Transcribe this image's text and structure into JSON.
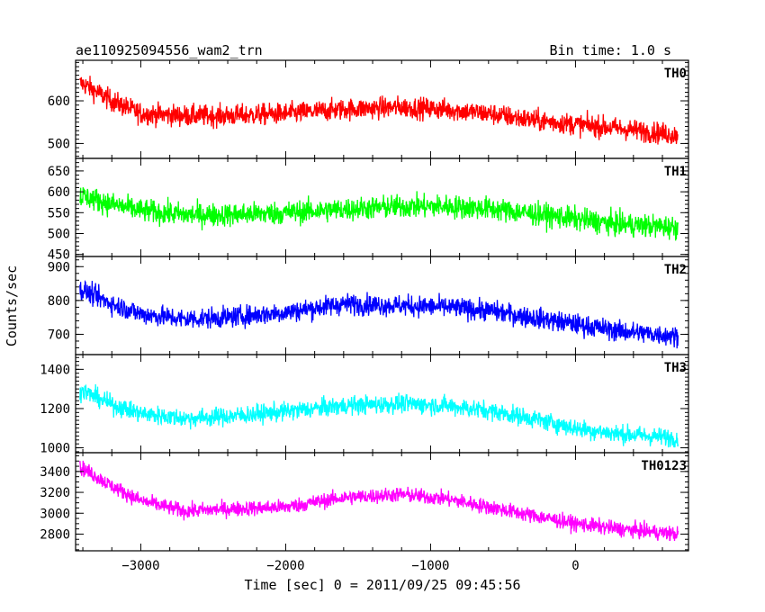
{
  "header": {
    "title": "ae110925094556_wam2_trn",
    "bin_time": "Bin time: 1.0 s"
  },
  "chart_data": {
    "type": "line",
    "title": "ae110925094556_wam2_trn",
    "subtitle": "Bin time: 1.0 s",
    "xlabel": "Time [sec] 0 = 2011/09/25 09:45:56",
    "ylabel": "Counts/sec",
    "xlim": [
      -3450,
      780
    ],
    "x_ticks": [
      -3000,
      -2000,
      -1000,
      0
    ],
    "x_tick_labels": [
      "−3000",
      "−2000",
      "−1000",
      "0"
    ],
    "grid": false,
    "panels": [
      {
        "name": "TH0",
        "color": "#ff0000",
        "ylim": [
          465,
          695
        ],
        "y_ticks": [
          500,
          600
        ],
        "y_tick_labels": [
          "500",
          "600"
        ],
        "trend_x": [
          -3400,
          -3200,
          -3000,
          -2700,
          -2400,
          -2000,
          -1600,
          -1200,
          -900,
          -600,
          -300,
          0,
          300,
          700
        ],
        "trend_y": [
          640,
          600,
          570,
          565,
          565,
          570,
          580,
          585,
          580,
          570,
          555,
          545,
          535,
          520
        ],
        "noise_amplitude": 45
      },
      {
        "name": "TH1",
        "color": "#00ff00",
        "ylim": [
          445,
          680
        ],
        "y_ticks": [
          450,
          500,
          550,
          600,
          650
        ],
        "y_tick_labels": [
          "450",
          "500",
          "550",
          "600",
          "650"
        ],
        "trend_x": [
          -3400,
          -3200,
          -3000,
          -2700,
          -2400,
          -2000,
          -1600,
          -1200,
          -900,
          -600,
          -300,
          0,
          300,
          700
        ],
        "trend_y": [
          590,
          570,
          555,
          545,
          545,
          550,
          558,
          565,
          565,
          560,
          548,
          535,
          522,
          515
        ],
        "noise_amplitude": 50
      },
      {
        "name": "TH2",
        "color": "#0000ff",
        "ylim": [
          640,
          930
        ],
        "y_ticks": [
          700,
          800,
          900
        ],
        "y_tick_labels": [
          "700",
          "800",
          "900"
        ],
        "trend_x": [
          -3400,
          -3200,
          -3000,
          -2700,
          -2400,
          -2000,
          -1600,
          -1200,
          -900,
          -600,
          -300,
          0,
          300,
          700
        ],
        "trend_y": [
          830,
          790,
          760,
          745,
          750,
          765,
          790,
          785,
          780,
          770,
          750,
          730,
          710,
          695
        ],
        "noise_amplitude": 55
      },
      {
        "name": "TH3",
        "color": "#00ffff",
        "ylim": [
          975,
          1475
        ],
        "y_ticks": [
          1000,
          1200,
          1400
        ],
        "y_tick_labels": [
          "1000",
          "1200",
          "1400"
        ],
        "trend_x": [
          -3400,
          -3200,
          -3000,
          -2700,
          -2400,
          -2000,
          -1600,
          -1200,
          -900,
          -600,
          -300,
          0,
          300,
          700
        ],
        "trend_y": [
          1290,
          1220,
          1175,
          1150,
          1160,
          1185,
          1215,
          1225,
          1215,
          1190,
          1150,
          1100,
          1070,
          1050
        ],
        "noise_amplitude": 85
      },
      {
        "name": "TH0123",
        "color": "#ff00ff",
        "ylim": [
          2640,
          3580
        ],
        "y_ticks": [
          2800,
          3000,
          3200,
          3400
        ],
        "y_tick_labels": [
          "2800",
          "3000",
          "3200",
          "3400"
        ],
        "trend_x": [
          -3400,
          -3200,
          -3000,
          -2700,
          -2400,
          -2000,
          -1600,
          -1200,
          -900,
          -600,
          -300,
          0,
          300,
          700
        ],
        "trend_y": [
          3430,
          3260,
          3120,
          3020,
          3040,
          3060,
          3150,
          3180,
          3140,
          3060,
          2980,
          2900,
          2850,
          2800
        ],
        "noise_amplitude": 130
      }
    ]
  }
}
